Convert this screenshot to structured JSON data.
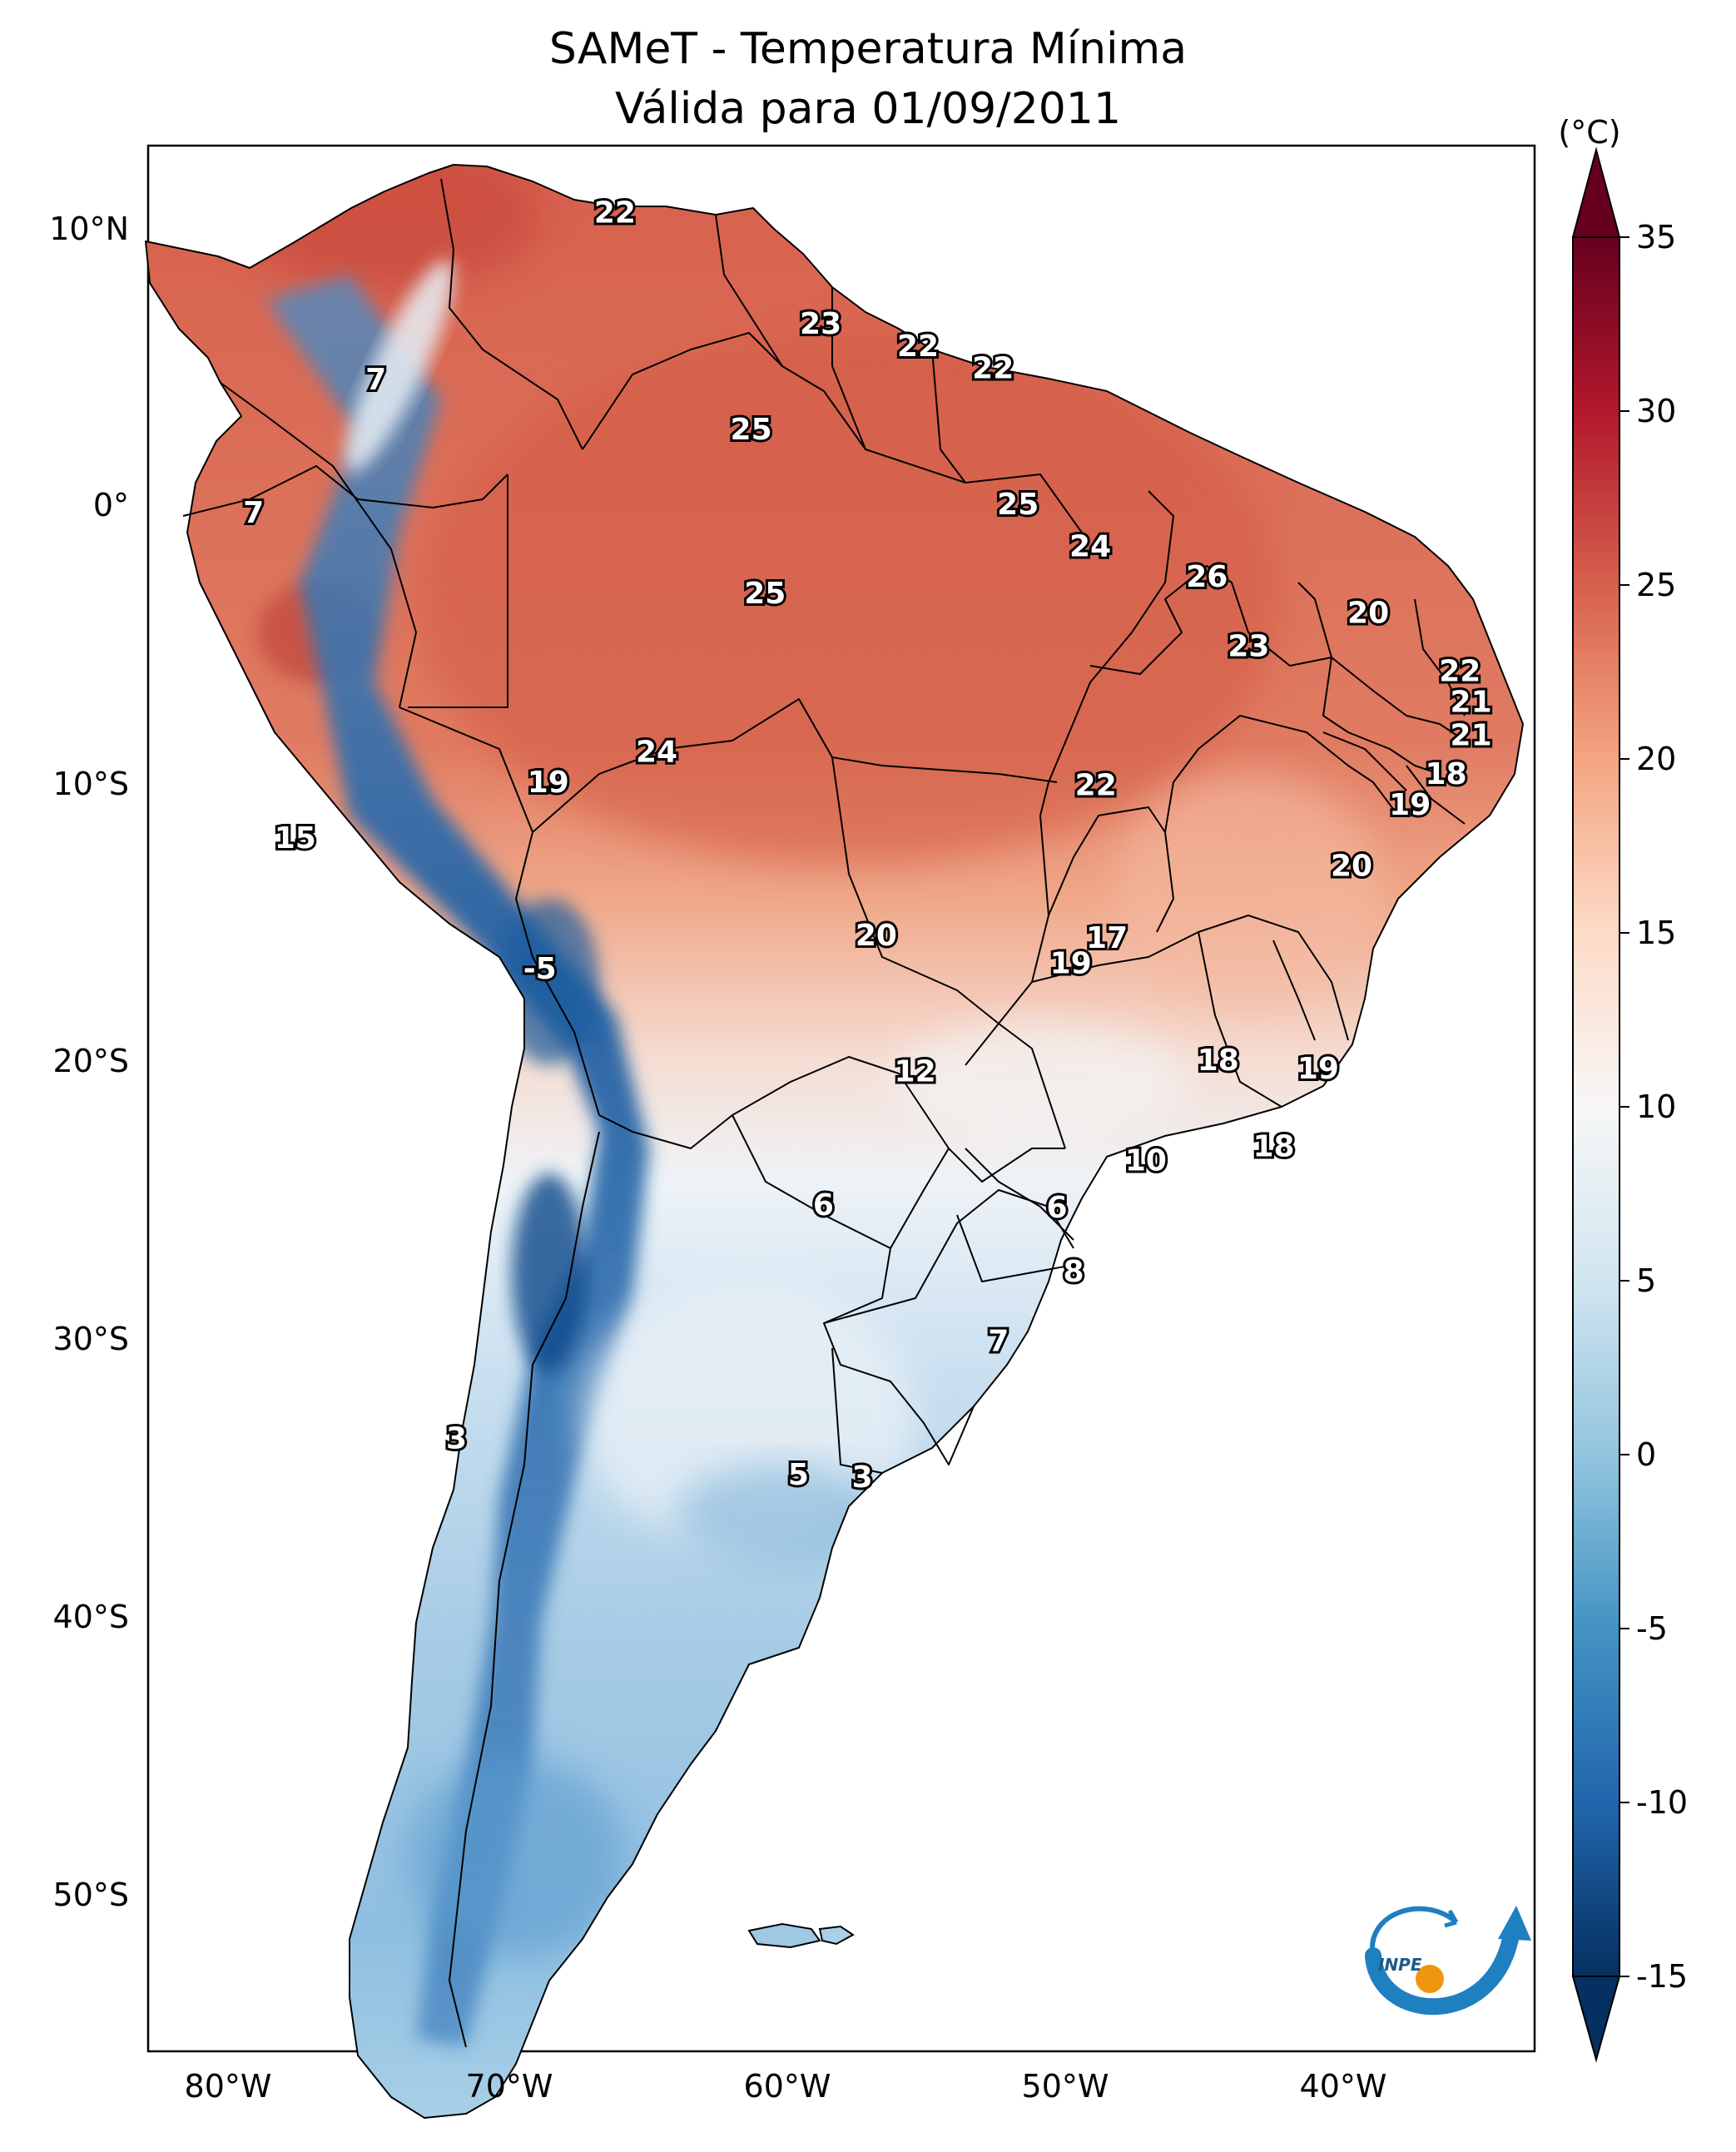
{
  "title": {
    "line1": "SAMeT - Temperatura Mínima",
    "line2": "Válida para 01/09/2011"
  },
  "colorbar": {
    "unit": "(°C)",
    "ticks": [
      "35",
      "30",
      "25",
      "20",
      "15",
      "10",
      "5",
      "0",
      "-5",
      "-10",
      "-15"
    ],
    "tick_values": [
      35,
      30,
      25,
      20,
      15,
      10,
      5,
      0,
      -5,
      -10,
      -15
    ],
    "range": [
      -15,
      35
    ],
    "extend": "both",
    "colormap": "RdBu_r",
    "stops": [
      "#053061",
      "#2166ac",
      "#4393c3",
      "#92c5de",
      "#d1e5f0",
      "#f7f7f7",
      "#fddbc7",
      "#f4a582",
      "#d6604d",
      "#b2182b",
      "#67001f"
    ]
  },
  "axes": {
    "lon_ticks": [
      "80°W",
      "70°W",
      "60°W",
      "50°W",
      "40°W"
    ],
    "lon_values": [
      -80,
      -70,
      -60,
      -50,
      -40
    ],
    "lat_ticks": [
      "10°N",
      "0°",
      "10°S",
      "20°S",
      "30°S",
      "40°S",
      "50°S"
    ],
    "lat_values": [
      10,
      0,
      -10,
      -20,
      -30,
      -40,
      -50
    ],
    "lon_range": [
      -83,
      -33
    ],
    "lat_range": [
      -56,
      13
    ]
  },
  "contour_labels": [
    {
      "text": "22",
      "lon": -66.2,
      "lat": 10.6
    },
    {
      "text": "7",
      "lon": -74.8,
      "lat": 4.6
    },
    {
      "text": "7",
      "lon": -79.2,
      "lat": -0.2
    },
    {
      "text": "23",
      "lon": -58.8,
      "lat": 6.6
    },
    {
      "text": "22",
      "lon": -55.3,
      "lat": 5.8
    },
    {
      "text": "22",
      "lon": -52.6,
      "lat": 5.0
    },
    {
      "text": "25",
      "lon": -61.3,
      "lat": 2.8
    },
    {
      "text": "25",
      "lon": -51.7,
      "lat": 0.1
    },
    {
      "text": "24",
      "lon": -49.1,
      "lat": -1.4
    },
    {
      "text": "26",
      "lon": -44.9,
      "lat": -2.5
    },
    {
      "text": "25",
      "lon": -60.8,
      "lat": -3.1
    },
    {
      "text": "20",
      "lon": -39.1,
      "lat": -3.8
    },
    {
      "text": "23",
      "lon": -43.4,
      "lat": -5.0
    },
    {
      "text": "22",
      "lon": -35.8,
      "lat": -5.9
    },
    {
      "text": "21",
      "lon": -35.4,
      "lat": -7.0
    },
    {
      "text": "21",
      "lon": -35.4,
      "lat": -8.2
    },
    {
      "text": "24",
      "lon": -64.7,
      "lat": -8.8
    },
    {
      "text": "19",
      "lon": -68.6,
      "lat": -9.9
    },
    {
      "text": "22",
      "lon": -48.9,
      "lat": -10.0
    },
    {
      "text": "18",
      "lon": -36.3,
      "lat": -9.6
    },
    {
      "text": "19",
      "lon": -37.6,
      "lat": -10.7
    },
    {
      "text": "15",
      "lon": -77.7,
      "lat": -11.9
    },
    {
      "text": "20",
      "lon": -39.7,
      "lat": -12.9
    },
    {
      "text": "20",
      "lon": -56.8,
      "lat": -15.4
    },
    {
      "text": "17",
      "lon": -48.5,
      "lat": -15.5
    },
    {
      "text": "19",
      "lon": -49.8,
      "lat": -16.4
    },
    {
      "text": "-5",
      "lon": -68.9,
      "lat": -16.6
    },
    {
      "text": "12",
      "lon": -55.4,
      "lat": -20.3
    },
    {
      "text": "18",
      "lon": -44.5,
      "lat": -19.9
    },
    {
      "text": "19",
      "lon": -40.9,
      "lat": -20.2
    },
    {
      "text": "18",
      "lon": -42.5,
      "lat": -23.0
    },
    {
      "text": "10",
      "lon": -47.1,
      "lat": -23.5
    },
    {
      "text": "6",
      "lon": -58.7,
      "lat": -25.1
    },
    {
      "text": "6",
      "lon": -50.3,
      "lat": -25.2
    },
    {
      "text": "8",
      "lon": -49.7,
      "lat": -27.5
    },
    {
      "text": "7",
      "lon": -52.4,
      "lat": -30.0
    },
    {
      "text": "3",
      "lon": -71.9,
      "lat": -33.5
    },
    {
      "text": "5",
      "lon": -59.6,
      "lat": -34.8
    },
    {
      "text": "3",
      "lon": -57.3,
      "lat": -34.9
    }
  ],
  "logo": {
    "text": "INPE",
    "colors": {
      "blue": "#1e7fc1",
      "orange": "#f0960e"
    }
  }
}
